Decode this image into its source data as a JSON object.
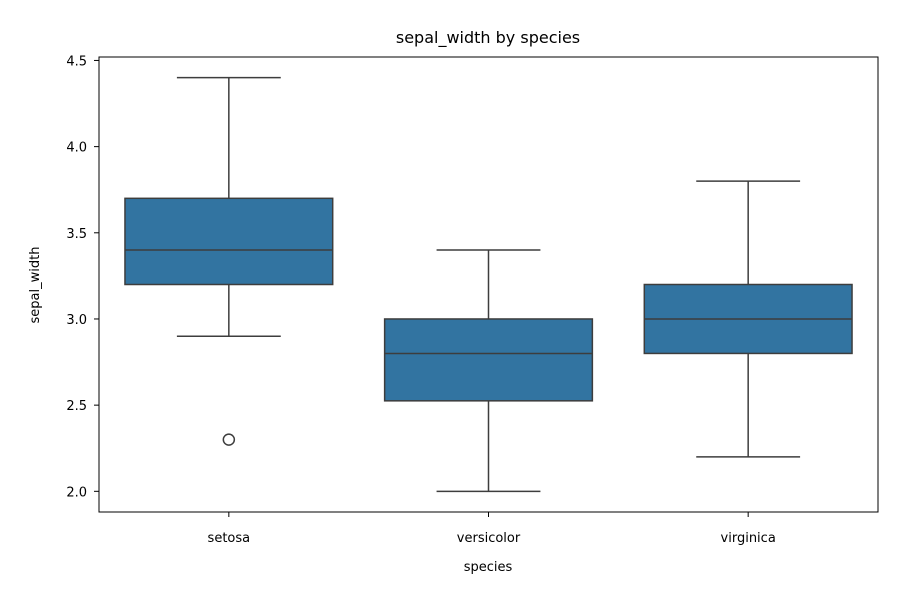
{
  "chart_data": {
    "type": "box",
    "title": "sepal_width by species",
    "xlabel": "species",
    "ylabel": "sepal_width",
    "ylim": [
      1.88,
      4.52
    ],
    "yticks": [
      "2.0",
      "2.5",
      "3.0",
      "3.5",
      "4.0",
      "4.5"
    ],
    "grid": false,
    "categories": [
      "setosa",
      "versicolor",
      "virginica"
    ],
    "boxes": [
      {
        "category": "setosa",
        "whisker_low": 2.9,
        "q1": 3.2,
        "median": 3.4,
        "q3": 3.7,
        "whisker_high": 4.4,
        "outliers": [
          2.3
        ]
      },
      {
        "category": "versicolor",
        "whisker_low": 2.0,
        "q1": 2.525,
        "median": 2.8,
        "q3": 3.0,
        "whisker_high": 3.4,
        "outliers": []
      },
      {
        "category": "virginica",
        "whisker_low": 2.2,
        "q1": 2.8,
        "median": 3.0,
        "q3": 3.2,
        "whisker_high": 3.8,
        "outliers": []
      }
    ],
    "colors": {
      "box_fill": "#3274a1",
      "line": "#3d3d3d",
      "axis": "#000000"
    }
  }
}
